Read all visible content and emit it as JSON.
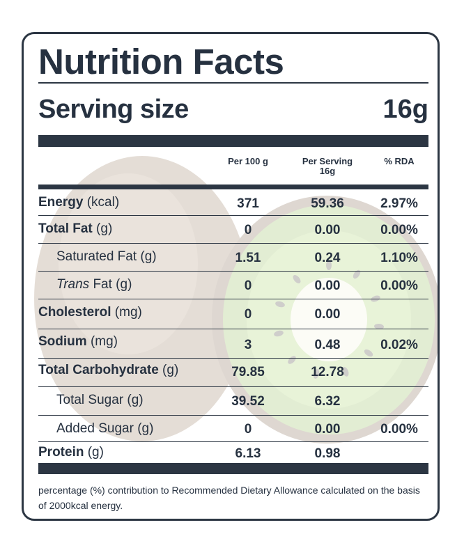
{
  "title": "Nutrition Facts",
  "serving": {
    "label": "Serving size",
    "value": "16g"
  },
  "columns": {
    "per100": "Per 100 g",
    "perServingLine1": "Per Serving",
    "perServingLine2": "16g",
    "rda": "% RDA"
  },
  "rows": [
    {
      "name": "Energy",
      "unit": " (kcal)",
      "per100": "371",
      "perServing": "59.36",
      "rda": "2.97%"
    },
    {
      "name": "Total Fat",
      "unit": " (g)",
      "per100": "0",
      "perServing": "0.00",
      "rda": "0.00%"
    },
    {
      "name": "Saturated Fat",
      "unit": " (g)",
      "per100": "1.51",
      "perServing": "0.24",
      "rda": "1.10%"
    },
    {
      "name": "Trans",
      "unit": " Fat (g)",
      "per100": "0",
      "perServing": "0.00",
      "rda": "0.00%"
    },
    {
      "name": "Cholesterol",
      "unit": " (mg)",
      "per100": "0",
      "perServing": "0.00",
      "rda": ""
    },
    {
      "name": "Sodium",
      "unit": " (mg)",
      "per100": "3",
      "perServing": "0.48",
      "rda": "0.02%"
    },
    {
      "name": "Total Carbohydrate",
      "unit": " (g)",
      "per100": "79.85",
      "perServing": "12.78",
      "rda": ""
    },
    {
      "name": "Total Sugar",
      "unit": " (g)",
      "per100": "39.52",
      "perServing": "6.32",
      "rda": ""
    },
    {
      "name": "Added Sugar",
      "unit": " (g)",
      "per100": "0",
      "perServing": "0.00",
      "rda": "0.00%"
    },
    {
      "name": "Protein",
      "unit": " (g)",
      "per100": "6.13",
      "perServing": "0.98",
      "rda": ""
    }
  ],
  "footnote": "percentage (%) contribution to Recommended Dietary Allowance calculated on the basis of 2000kcal energy.",
  "colors": {
    "ink": "#263140",
    "bar": "#2c3643",
    "kiwiSkin": "#8a6a4a",
    "kiwiFlesh": "#7fb23a"
  }
}
